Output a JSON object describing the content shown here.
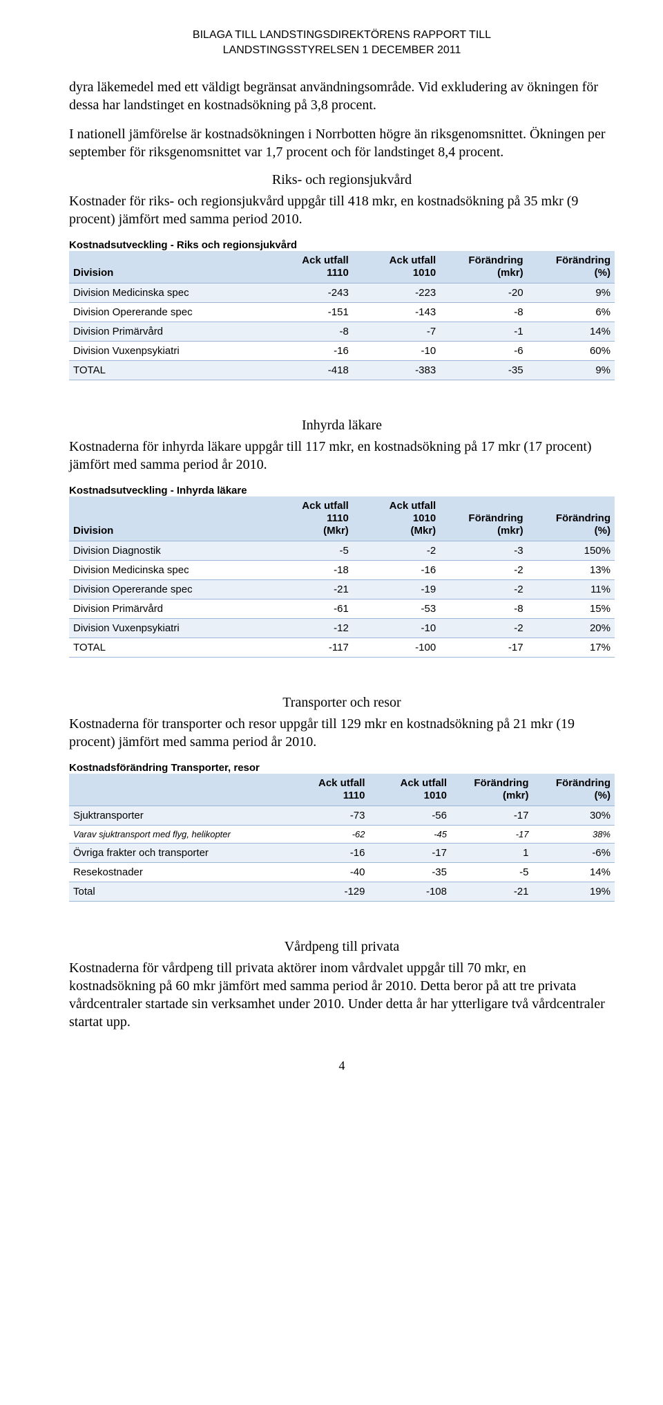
{
  "header": {
    "line1": "BILAGA TILL LANDSTINGSDIREKTÖRENS RAPPORT TILL",
    "line2": "LANDSTINGSSTYRELSEN  1 DECEMBER 2011"
  },
  "intro": {
    "p1": "dyra läkemedel med ett väldigt begränsat användningsområde. Vid exkludering av ökningen för dessa har landstinget en kostnadsökning på 3,8 procent.",
    "p2": "I nationell jämförelse är kostnadsökningen i Norrbotten högre än riksgenomsnittet. Ökningen per september för riksgenomsnittet var 1,7 procent och för landstinget 8,4 procent."
  },
  "section1": {
    "heading": "Riks- och regionsjukvård",
    "para": "Kostnader för riks- och regionsjukvård uppgår till 418 mkr, en kostnadsökning på 35 mkr (9 procent) jämfört med samma period 2010.",
    "caption": "Kostnadsutveckling - Riks och regionsjukvård",
    "columns": [
      "Division",
      "Ack utfall 1110",
      "Ack utfall 1010",
      "Förändring (mkr)",
      "Förändring (%)"
    ],
    "col_widths": [
      "36%",
      "16%",
      "16%",
      "16%",
      "16%"
    ],
    "header_bg": "#cfdff0",
    "row_stripe_bg": "#e9f0f8",
    "rows": [
      [
        "Division Medicinska spec",
        "-243",
        "-223",
        "-20",
        "9%"
      ],
      [
        "Division Opererande spec",
        "-151",
        "-143",
        "-8",
        "6%"
      ],
      [
        "Division Primärvård",
        "-8",
        "-7",
        "-1",
        "14%"
      ],
      [
        "Division Vuxenpsykiatri",
        "-16",
        "-10",
        "-6",
        "60%"
      ],
      [
        "TOTAL",
        "-418",
        "-383",
        "-35",
        "9%"
      ]
    ]
  },
  "section2": {
    "heading": "Inhyrda läkare",
    "para": "Kostnaderna för inhyrda läkare uppgår till 117 mkr, en kostnadsökning på 17 mkr (17 procent) jämfört med samma period år 2010.",
    "caption": "Kostnadsutveckling - Inhyrda läkare",
    "columns": [
      "Division",
      "Ack utfall 1110 (Mkr)",
      "Ack utfall 1010 (Mkr)",
      "Förändring (mkr)",
      "Förändring (%)"
    ],
    "col_widths": [
      "36%",
      "16%",
      "16%",
      "16%",
      "16%"
    ],
    "rows": [
      [
        "Division Diagnostik",
        "-5",
        "-2",
        "-3",
        "150%"
      ],
      [
        "Division Medicinska spec",
        "-18",
        "-16",
        "-2",
        "13%"
      ],
      [
        "Division Opererande spec",
        "-21",
        "-19",
        "-2",
        "11%"
      ],
      [
        "Division Primärvård",
        "-61",
        "-53",
        "-8",
        "15%"
      ],
      [
        "Division Vuxenpsykiatri",
        "-12",
        "-10",
        "-2",
        "20%"
      ],
      [
        "TOTAL",
        "-117",
        "-100",
        "-17",
        "17%"
      ]
    ]
  },
  "section3": {
    "heading": "Transporter och resor",
    "para": "Kostnaderna för transporter och resor uppgår till 129 mkr en kostnadsökning på 21 mkr (19 procent) jämfört med samma period år 2010.",
    "caption": "Kostnadsförändring Transporter, resor",
    "columns": [
      "",
      "Ack utfall 1110",
      "Ack utfall 1010",
      "Förändring (mkr)",
      "Förändring (%)"
    ],
    "col_widths": [
      "40%",
      "15%",
      "15%",
      "15%",
      "15%"
    ],
    "rows": [
      {
        "cells": [
          "Sjuktransporter",
          "-73",
          "-56",
          "-17",
          "30%"
        ],
        "italic": false
      },
      {
        "cells": [
          "Varav sjuktransport med flyg, helikopter",
          "-62",
          "-45",
          "-17",
          "38%"
        ],
        "italic": true
      },
      {
        "cells": [
          "Övriga frakter och transporter",
          "-16",
          "-17",
          "1",
          "-6%"
        ],
        "italic": false
      },
      {
        "cells": [
          "Resekostnader",
          "-40",
          "-35",
          "-5",
          "14%"
        ],
        "italic": false
      },
      {
        "cells": [
          "Total",
          "-129",
          "-108",
          "-21",
          "19%"
        ],
        "italic": false
      }
    ]
  },
  "section4": {
    "heading": "Vårdpeng till privata",
    "para": "Kostnaderna för vårdpeng till privata aktörer inom vårdvalet uppgår till 70 mkr, en kostnadsökning på 60 mkr jämfört med samma period år 2010. Detta beror på att tre privata vårdcentraler startade sin verksamhet under 2010. Under detta år har ytterligare två vårdcentraler startat upp."
  },
  "page_number": "4"
}
